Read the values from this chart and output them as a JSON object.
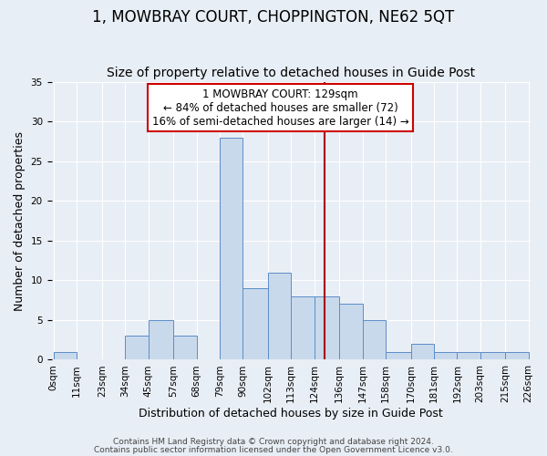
{
  "title": "1, MOWBRAY COURT, CHOPPINGTON, NE62 5QT",
  "subtitle": "Size of property relative to detached houses in Guide Post",
  "xlabel": "Distribution of detached houses by size in Guide Post",
  "ylabel": "Number of detached properties",
  "bar_left_edges": [
    0,
    11,
    23,
    34,
    45,
    57,
    68,
    79,
    90,
    102,
    113,
    124,
    136,
    147,
    158,
    170,
    181,
    192,
    203,
    215
  ],
  "bar_widths": [
    11,
    12,
    11,
    11,
    12,
    11,
    11,
    11,
    12,
    11,
    11,
    12,
    11,
    11,
    12,
    11,
    11,
    11,
    12,
    11
  ],
  "bar_heights": [
    1,
    0,
    0,
    3,
    5,
    3,
    0,
    28,
    9,
    11,
    8,
    8,
    7,
    5,
    1,
    2,
    1,
    1,
    1,
    1
  ],
  "bar_color": "#c9d9ec",
  "bar_edgecolor": "#5b8dc8",
  "bg_color": "#e8eef5",
  "grid_color": "#ffffff",
  "vline_x": 129,
  "vline_color": "#aa0000",
  "annotation_text_line1": "1 MOWBRAY COURT: 129sqm",
  "annotation_text_line2": "← 84% of detached houses are smaller (72)",
  "annotation_text_line3": "16% of semi-detached houses are larger (14) →",
  "annotation_box_color": "#cc0000",
  "yticks": [
    0,
    5,
    10,
    15,
    20,
    25,
    30,
    35
  ],
  "ylim": [
    0,
    35
  ],
  "xlim": [
    -1,
    227
  ],
  "tick_labels": [
    "0sqm",
    "11sqm",
    "23sqm",
    "34sqm",
    "45sqm",
    "57sqm",
    "68sqm",
    "79sqm",
    "90sqm",
    "102sqm",
    "113sqm",
    "124sqm",
    "136sqm",
    "147sqm",
    "158sqm",
    "170sqm",
    "181sqm",
    "192sqm",
    "203sqm",
    "215sqm",
    "226sqm"
  ],
  "tick_positions": [
    0,
    11,
    23,
    34,
    45,
    57,
    68,
    79,
    90,
    102,
    113,
    124,
    136,
    147,
    158,
    170,
    181,
    192,
    203,
    215,
    226
  ],
  "footer1": "Contains HM Land Registry data © Crown copyright and database right 2024.",
  "footer2": "Contains public sector information licensed under the Open Government Licence v3.0.",
  "title_fontsize": 12,
  "subtitle_fontsize": 10,
  "ylabel_fontsize": 9,
  "xlabel_fontsize": 9,
  "annotation_fontsize": 8.5,
  "tick_fontsize": 7.5,
  "footer_fontsize": 6.5
}
